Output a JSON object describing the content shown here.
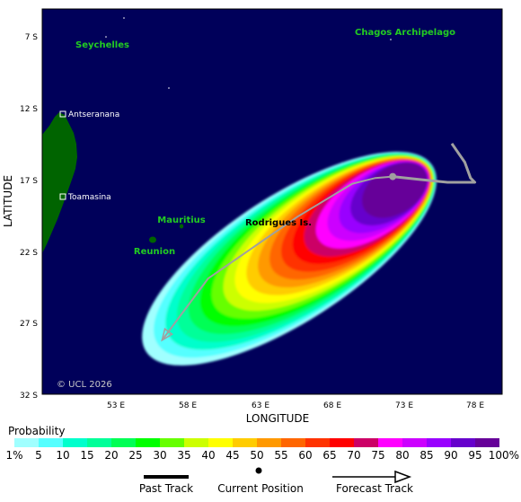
{
  "map": {
    "lat_ticks": [
      "7 S",
      "12 S",
      "17 S",
      "22 S",
      "27 S",
      "32 S"
    ],
    "lon_ticks": [
      "53 E",
      "58 E",
      "63 E",
      "68 E",
      "73 E",
      "78 E"
    ],
    "xlabel": "LONGITUDE",
    "ylabel": "LATITUDE",
    "copyright": "© UCL 2026",
    "colors": {
      "ocean": "#00005a",
      "land": "#006400",
      "place_label": "#22cc22",
      "city_label": "#ffffff",
      "track": "#a0a0a0"
    },
    "place_labels": [
      {
        "name": "seychelles",
        "text": "Seychelles"
      },
      {
        "name": "chagos",
        "text": "Chagos Archipelago"
      },
      {
        "name": "mauritius",
        "text": "Mauritius"
      },
      {
        "name": "rodrigues",
        "text": "Rodrigues Is."
      },
      {
        "name": "reunion",
        "text": "Reunion"
      }
    ],
    "cities": [
      {
        "name": "antseranana",
        "text": "Antseranana"
      },
      {
        "name": "toamasina",
        "text": "Toamasina"
      }
    ],
    "past_track_lonlat": [
      [
        76.3,
        14.5
      ],
      [
        77.2,
        15.8
      ],
      [
        77.6,
        16.9
      ],
      [
        77.9,
        17.2
      ],
      [
        76.0,
        17.2
      ],
      [
        74.0,
        17.0
      ],
      [
        72.2,
        16.8
      ]
    ],
    "current_position_lonlat": [
      72.2,
      16.8
    ],
    "forecast_track_lonlat": [
      [
        72.2,
        16.8
      ],
      [
        71.0,
        16.9
      ],
      [
        69.4,
        17.3
      ],
      [
        65.6,
        19.6
      ],
      [
        59.4,
        23.9
      ],
      [
        56.2,
        28.2
      ]
    ]
  },
  "legend": {
    "title": "Probability",
    "labels": [
      "1%",
      "5",
      "10",
      "15",
      "20",
      "25",
      "30",
      "35",
      "40",
      "45",
      "50",
      "55",
      "60",
      "65",
      "70",
      "75",
      "80",
      "85",
      "90",
      "95",
      "100%"
    ],
    "colors": [
      "#a0ffff",
      "#55ffff",
      "#00ffcc",
      "#00ff99",
      "#00ff55",
      "#00ff00",
      "#66ff00",
      "#ccff00",
      "#ffff00",
      "#ffcc00",
      "#ff9900",
      "#ff6600",
      "#ff3300",
      "#ff0000",
      "#cc0066",
      "#ff00ff",
      "#cc00ff",
      "#9900ff",
      "#6600cc",
      "#660099"
    ],
    "past_track": "Past Track",
    "current_position": "Current Position",
    "forecast_track": "Forecast Track"
  }
}
